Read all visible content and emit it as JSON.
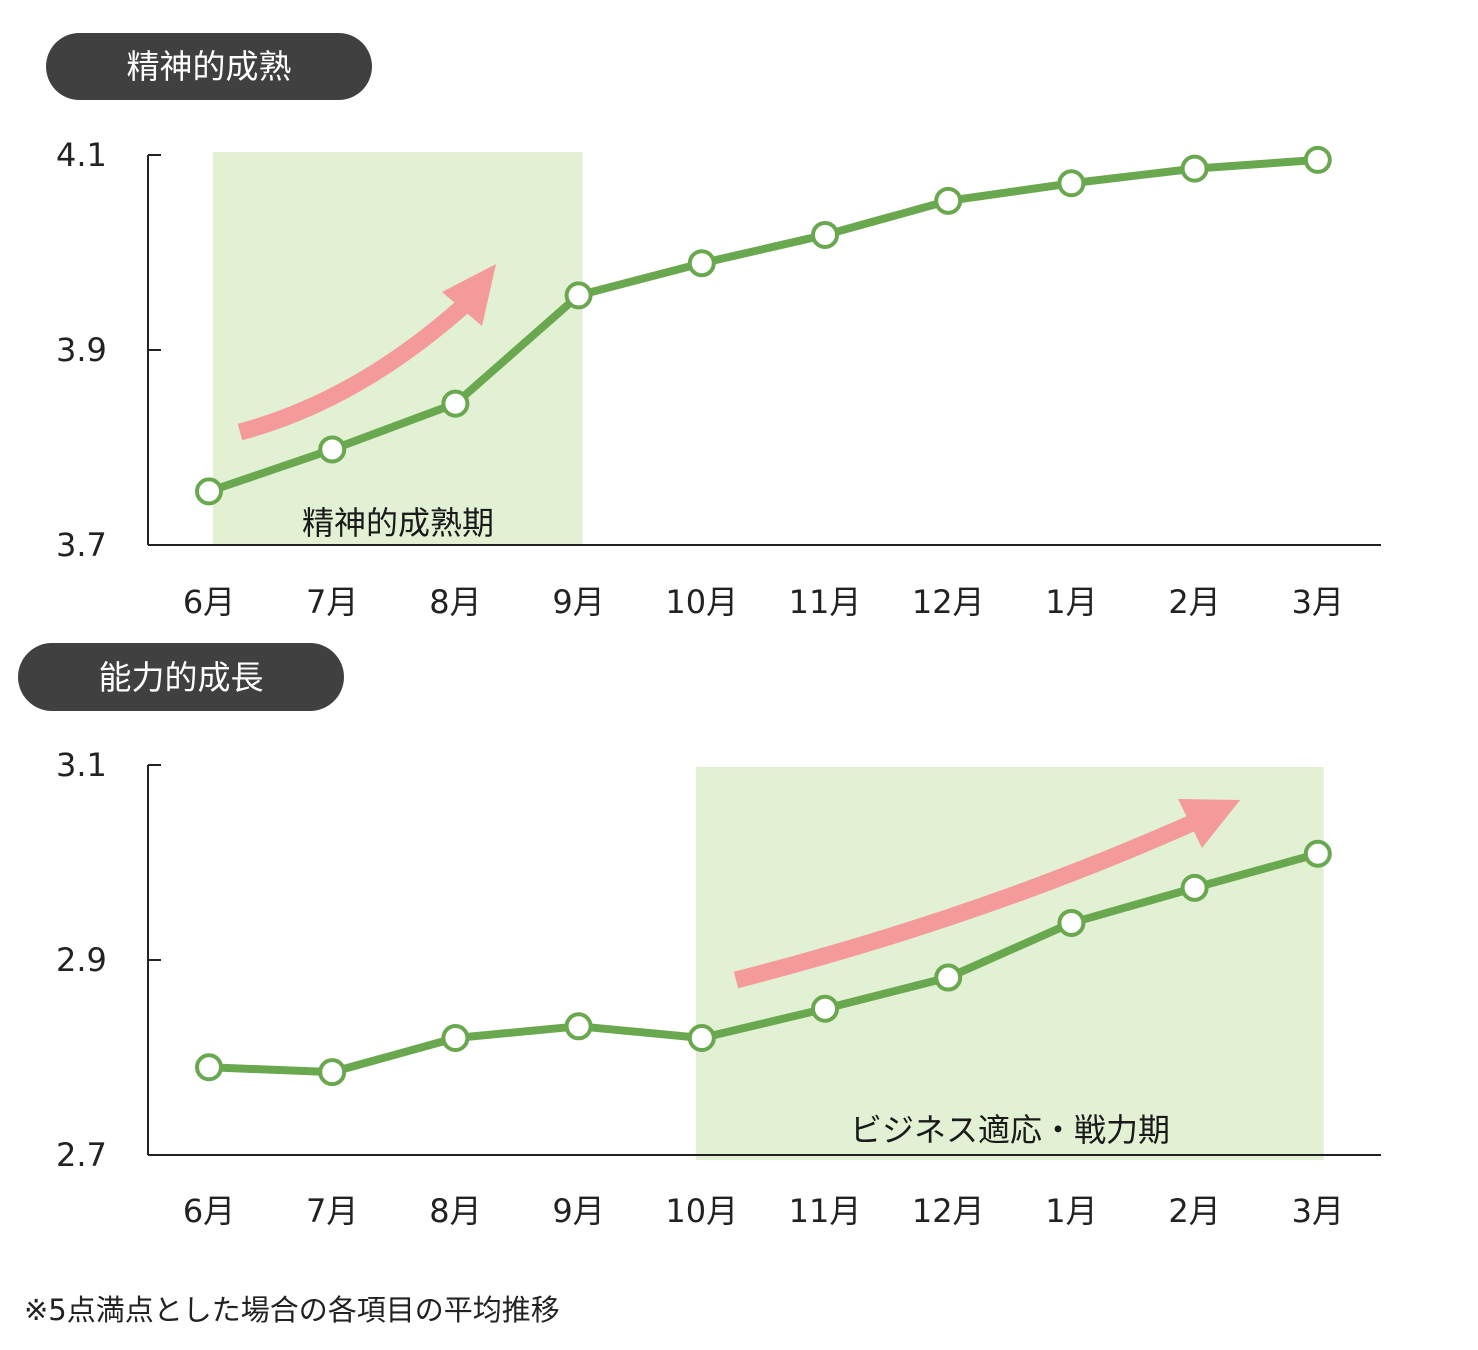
{
  "colors": {
    "line": "#6aa84f",
    "marker_fill": "#ffffff",
    "band": "#e2f0d4",
    "arrow": "#f59a9a",
    "pill": "#404040",
    "axis": "#222222"
  },
  "chart_data": [
    {
      "type": "line",
      "title": "精神的成熟",
      "categories": [
        "6月",
        "7月",
        "8月",
        "9月",
        "10月",
        "11月",
        "12月",
        "1月",
        "2月",
        "3月"
      ],
      "series": [
        {
          "values": [
            3.755,
            3.798,
            3.845,
            3.956,
            3.989,
            4.018,
            4.053,
            4.071,
            4.086,
            4.095
          ]
        }
      ],
      "ylim": [
        3.7,
        4.1
      ],
      "yticks": [
        "3.7",
        "3.9",
        "4.1"
      ],
      "highlight": {
        "label": "精神的成熟期",
        "from": "6月",
        "to": "9月"
      },
      "trend_arrow": true,
      "grid": false
    },
    {
      "type": "line",
      "title": "能力的成長",
      "categories": [
        "6月",
        "7月",
        "8月",
        "9月",
        "10月",
        "11月",
        "12月",
        "1月",
        "2月",
        "3月"
      ],
      "series": [
        {
          "values": [
            2.79,
            2.785,
            2.82,
            2.832,
            2.82,
            2.85,
            2.882,
            2.938,
            2.974,
            3.009
          ]
        }
      ],
      "ylim": [
        2.7,
        3.1
      ],
      "yticks": [
        "2.7",
        "2.9",
        "3.1"
      ],
      "highlight": {
        "label": "ビジネス適応・戦力期",
        "from": "10月",
        "to": "3月"
      },
      "trend_arrow": true,
      "grid": false
    }
  ],
  "footnote": "※5点満点とした場合の各項目の平均推移"
}
